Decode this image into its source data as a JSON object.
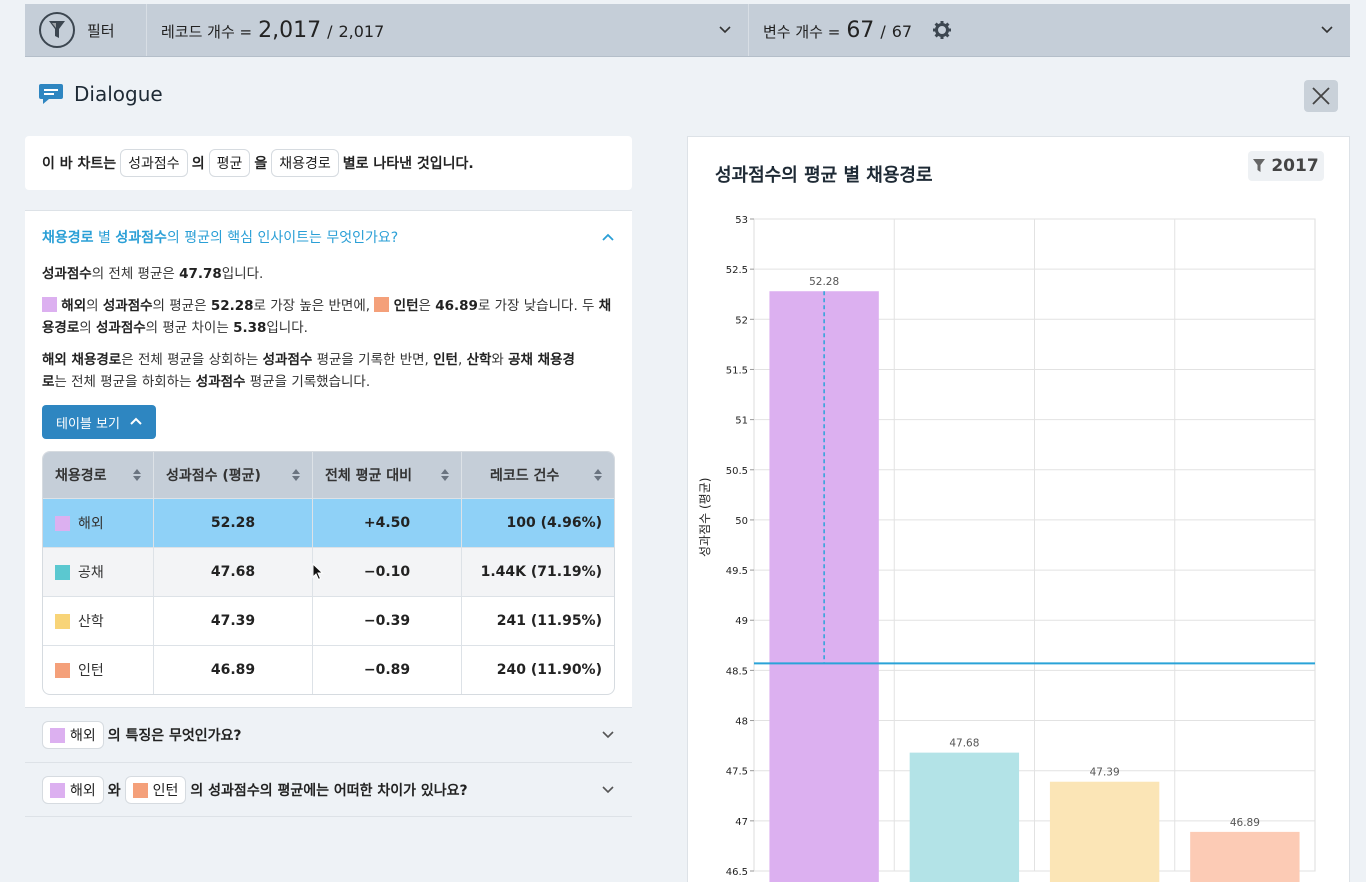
{
  "topbar": {
    "filter_label": "필터",
    "records_label": "레코드 개수 =",
    "records_count": "2,017",
    "records_sep": "/",
    "records_total": "2,017",
    "vars_label": "변수 개수 =",
    "vars_count": "67",
    "vars_sep": "/",
    "vars_total": "67"
  },
  "dialogue": {
    "title": "Dialogue"
  },
  "summary": {
    "prefix": "이 바 차트는",
    "chip_measure": "성과점수",
    "mid1": "의",
    "chip_agg": "평균",
    "mid2": "을",
    "chip_dim": "채용경로",
    "suffix": "별로 나타낸 것입니다."
  },
  "insight": {
    "q_dim": "채용경로",
    "q_mid": "별",
    "q_measure": "성과점수",
    "q_rest": "의 평균의 핵심 인사이트는 무엇인가요?",
    "p1_measure": "성과점수",
    "p1_text": "의 전체 평균은",
    "p1_value": "47.78",
    "p1_end": "입니다.",
    "p2_top": "해외",
    "p2_a": "의",
    "p2_measure": "성과점수",
    "p2_b": "의 평균은",
    "p2_top_val": "52.28",
    "p2_c": "로 가장 높은 반면에,",
    "p2_low": "인턴",
    "p2_d": "은",
    "p2_low_val": "46.89",
    "p2_e": "로 가장 낮습니다. 두",
    "p2_dim": "채용경로",
    "p2_f": "의",
    "p2_measure2": "성과점수",
    "p2_g": "의 평균 차이는",
    "p2_diff": "5.38",
    "p2_h": "입니다.",
    "p3_top": "해외 채용경로",
    "p3_a": "은 전체 평균을 상회하는",
    "p3_measure": "성과점수",
    "p3_b": "평균을 기록한 반면,",
    "p3_c1": "인턴",
    "p3_comma": ",",
    "p3_c2": "산학",
    "p3_wa": "와",
    "p3_c3": "공채 채용경",
    "p3_c3b": "로",
    "p3_d": "는 전체 평균을 하회하는",
    "p3_measure2": "성과점수",
    "p3_e": "평균을 기록했습니다.",
    "table_button": "테이블 보기"
  },
  "table": {
    "headers": [
      "채용경로",
      "성과점수 (평균)",
      "전체 평균 대비",
      "레코드 건수"
    ],
    "rows": [
      {
        "name": "해외",
        "color": "#dcb0f0",
        "avg": "52.28",
        "diff": "+4.50",
        "count": "100 (4.96%)"
      },
      {
        "name": "공채",
        "color": "#5bc8d0",
        "avg": "47.68",
        "diff": "−0.10",
        "count": "1.44K (71.19%)"
      },
      {
        "name": "산학",
        "color": "#f8d478",
        "avg": "47.39",
        "diff": "−0.39",
        "count": "241 (11.95%)"
      },
      {
        "name": "인턴",
        "color": "#f4a07a",
        "avg": "46.89",
        "diff": "−0.89",
        "count": "240 (11.90%)"
      }
    ]
  },
  "accordion": {
    "q2_chip": "해외",
    "q2_text": "의 특징은 무엇인가요?",
    "q3_chip1": "해외",
    "q3_wa": "와",
    "q3_chip2": "인턴",
    "q3_text": "의 성과점수의 평균에는 어떠한 차이가 있나요?"
  },
  "chart_header": {
    "title": "성과점수의 평균 별 채용경로",
    "filter_count": "2017"
  },
  "chart_data": {
    "type": "bar",
    "categories": [
      "해외",
      "공채",
      "산학",
      "인턴"
    ],
    "values": [
      52.28,
      47.68,
      47.39,
      46.89
    ],
    "colors": [
      "#dcb0f0",
      "#b3e3e7",
      "#fbe5b6",
      "#fccbb5"
    ],
    "ylabel": "성과점수 (평균)",
    "ylim": [
      46.5,
      53
    ],
    "yticks": [
      46.5,
      47,
      47.5,
      48,
      48.5,
      49,
      49.5,
      50,
      50.5,
      51,
      51.5,
      52,
      52.5,
      53
    ],
    "reference_line": 48.57,
    "highlighted_category": "해외"
  }
}
